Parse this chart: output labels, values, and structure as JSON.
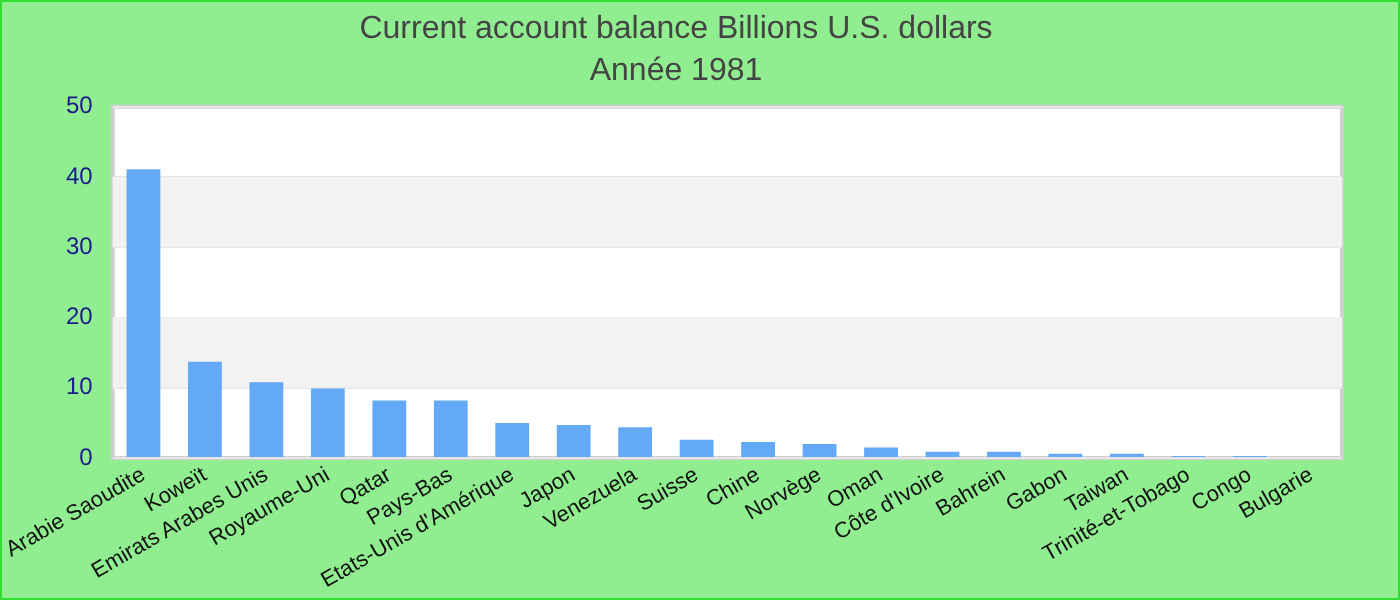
{
  "chart_data": {
    "type": "bar",
    "title": "Current account balance Billions U.S. dollars",
    "subtitle": "Année 1981",
    "categories": [
      "Arabie Saoudite",
      "Koweït",
      "Emirats Arabes Unis",
      "Royaume-Uni",
      "Qatar",
      "Pays-Bas",
      "Etats-Unis d'Amérique",
      "Japon",
      "Venezuela",
      "Suisse",
      "Chine",
      "Norvège",
      "Oman",
      "Côte d'Ivoire",
      "Bahrein",
      "Gabon",
      "Taiwan",
      "Trinité-et-Tobago",
      "Congo",
      "Bulgarie"
    ],
    "values": [
      41.1,
      13.7,
      10.8,
      9.9,
      8.2,
      8.2,
      5.0,
      4.7,
      4.4,
      2.6,
      2.3,
      2.0,
      1.5,
      0.9,
      0.9,
      0.6,
      0.6,
      0.3,
      0.3,
      0
    ],
    "color": "#63a9f5",
    "ylim": [
      0,
      50
    ],
    "yticks": [
      0,
      10,
      20,
      30,
      40,
      50
    ],
    "grid": "y",
    "legend": false
  }
}
